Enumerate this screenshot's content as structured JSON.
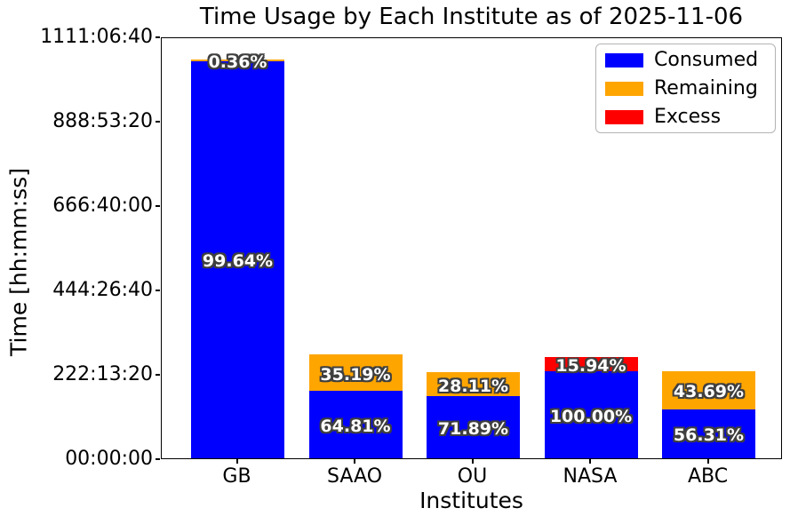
{
  "figure": {
    "title": "Time Usage by Each Institute as of 2025-11-06",
    "xlabel": "Institutes",
    "ylabel": "Time [hh:mm:ss]"
  },
  "legend": {
    "position": "upper right",
    "items": [
      {
        "label": "Consumed",
        "color": "#0000ff"
      },
      {
        "label": "Remaining",
        "color": "#ffa500"
      },
      {
        "label": "Excess",
        "color": "#ff0000"
      }
    ]
  },
  "label_style": {
    "fill": "#ffffff",
    "outline": "#3f3f3f"
  },
  "chart_data": {
    "type": "bar",
    "stacked": true,
    "title": "Time Usage by Each Institute as of 2025-11-06",
    "xlabel": "Institutes",
    "ylabel": "Time [hh:mm:ss]",
    "grid": false,
    "legend_position": "upper right",
    "categories": [
      "GB",
      "SAAO",
      "OU",
      "NASA",
      "ABC"
    ],
    "y_axis": {
      "unit": "seconds",
      "tick_labels": [
        "00:00:00",
        "222:13:20",
        "444:26:40",
        "666:40:00",
        "888:53:20",
        "1111:06:40"
      ],
      "tick_seconds": [
        0,
        800000,
        1600000,
        2400000,
        3200000,
        4000000
      ],
      "max_seconds": 4000000
    },
    "series_colors": {
      "Consumed": "#0000ff",
      "Remaining": "#ffa500",
      "Excess": "#ff0000"
    },
    "bars": [
      {
        "institute": "GB",
        "total_seconds": 3781200,
        "segments": [
          {
            "name": "Consumed",
            "seconds": 3767600,
            "label": "99.64%"
          },
          {
            "name": "Remaining",
            "seconds": 13600,
            "label": "0.36%"
          }
        ]
      },
      {
        "institute": "SAAO",
        "total_seconds": 985200,
        "segments": [
          {
            "name": "Consumed",
            "seconds": 638500,
            "label": "64.81%"
          },
          {
            "name": "Remaining",
            "seconds": 346700,
            "label": "35.19%"
          }
        ]
      },
      {
        "institute": "OU",
        "total_seconds": 816800,
        "segments": [
          {
            "name": "Consumed",
            "seconds": 587200,
            "label": "71.89%"
          },
          {
            "name": "Remaining",
            "seconds": 229600,
            "label": "28.11%"
          }
        ]
      },
      {
        "institute": "NASA",
        "total_seconds": 959500,
        "segments": [
          {
            "name": "Consumed",
            "seconds": 827600,
            "label": "100.00%"
          },
          {
            "name": "Excess",
            "seconds": 131900,
            "label": "15.94%"
          }
        ]
      },
      {
        "institute": "ABC",
        "total_seconds": 825200,
        "segments": [
          {
            "name": "Consumed",
            "seconds": 464700,
            "label": "56.31%"
          },
          {
            "name": "Remaining",
            "seconds": 360500,
            "label": "43.69%"
          }
        ]
      }
    ]
  }
}
